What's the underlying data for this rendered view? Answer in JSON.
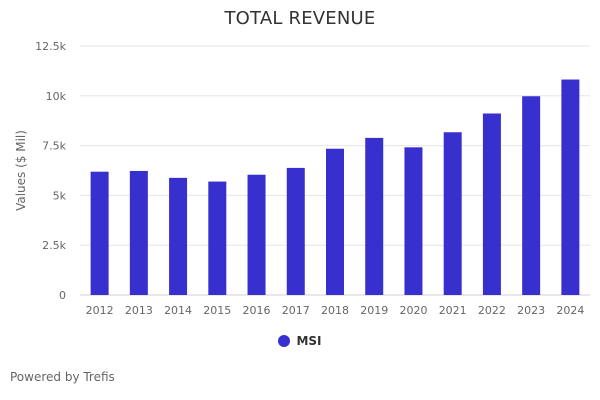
{
  "chart_data": {
    "type": "bar",
    "title": "TOTAL REVENUE",
    "xlabel": "",
    "ylabel": "Values ($ Mil)",
    "categories": [
      "2012",
      "2013",
      "2014",
      "2015",
      "2016",
      "2017",
      "2018",
      "2019",
      "2020",
      "2021",
      "2022",
      "2023",
      "2024"
    ],
    "series": [
      {
        "name": "MSI",
        "values": [
          6190,
          6227,
          5881,
          5695,
          6038,
          6380,
          7343,
          7887,
          7414,
          8171,
          9112,
          9978,
          10817
        ],
        "color": "#3730cf"
      }
    ],
    "ylim": [
      0,
      12500
    ],
    "yticks": [
      0,
      2500,
      5000,
      7500,
      10000,
      12500
    ],
    "ytick_labels": [
      "0",
      "2.5k",
      "5k",
      "7.5k",
      "10k",
      "12.5k"
    ],
    "grid": true,
    "legend_position": "bottom"
  },
  "footer": {
    "credit": "Powered by Trefis"
  }
}
